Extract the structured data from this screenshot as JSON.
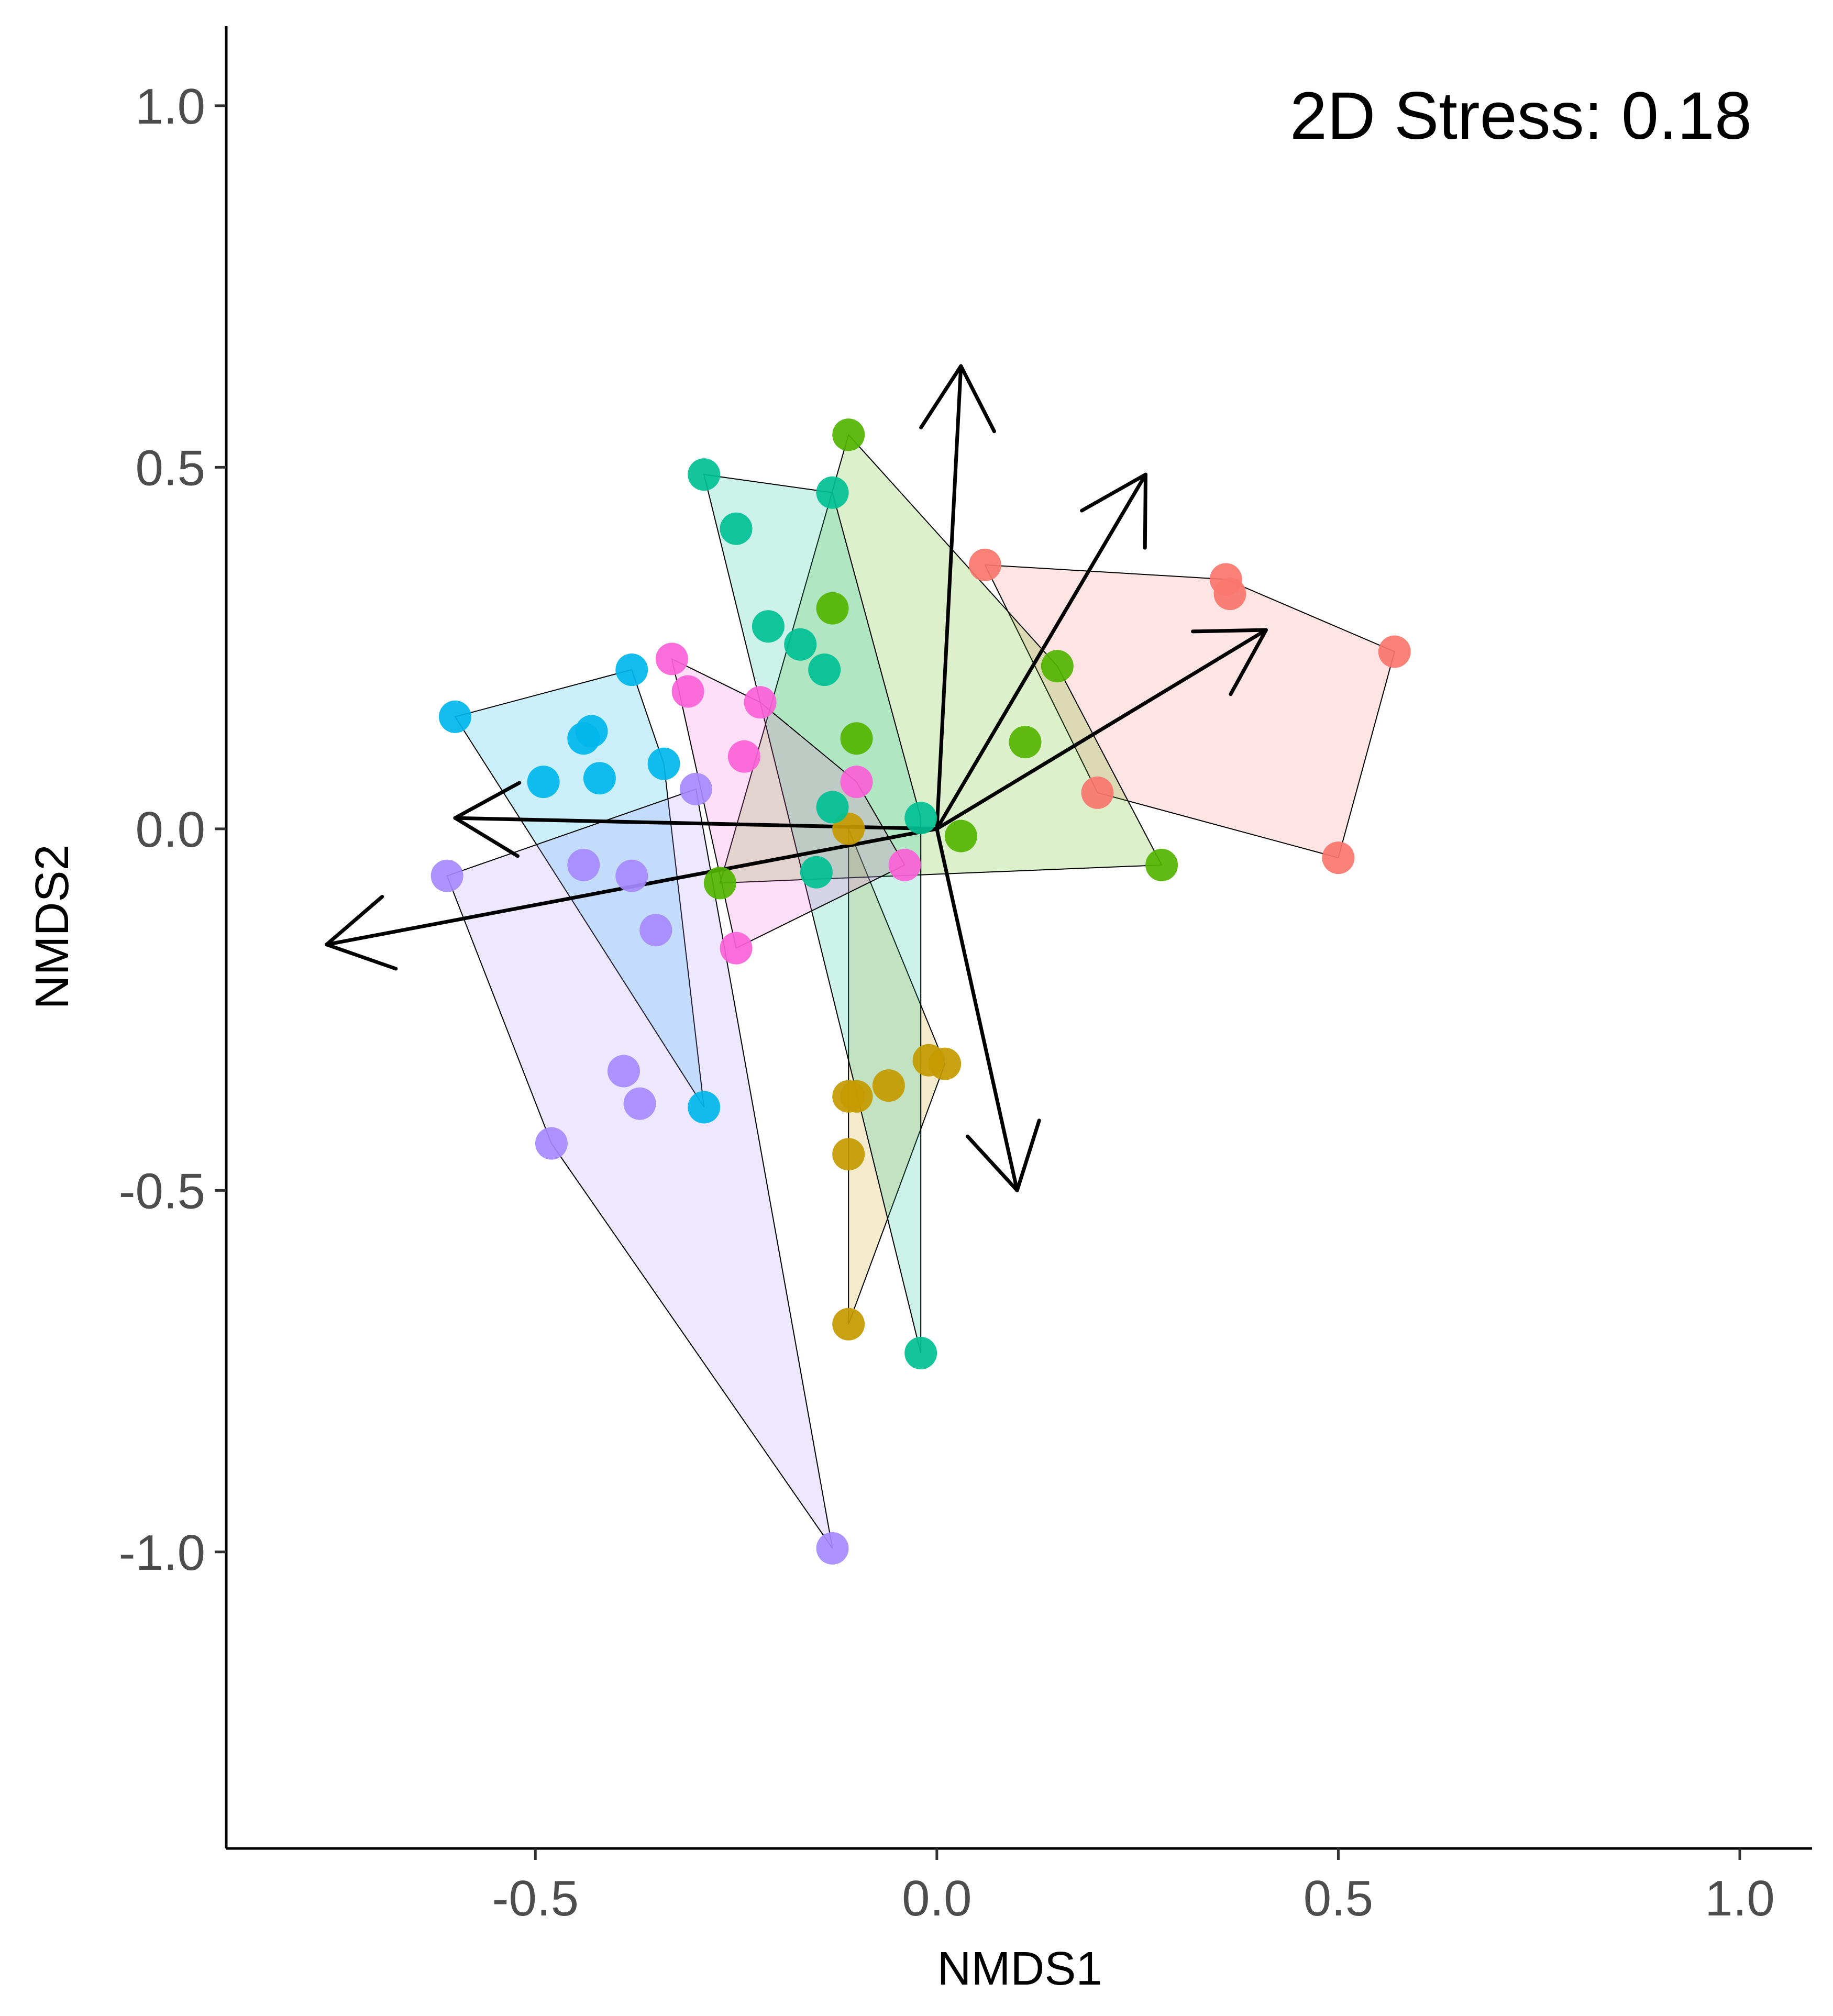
{
  "chart_data": {
    "type": "scatter",
    "xlabel": "NMDS1",
    "ylabel": "NMDS2",
    "xlim": [
      -0.885,
      1.09
    ],
    "ylim": [
      -1.41,
      1.11
    ],
    "xticks": [
      -0.5,
      0.0,
      0.5,
      1.0
    ],
    "yticks": [
      1.0,
      0.5,
      0.0,
      -0.5,
      -1.0
    ],
    "annotation": "2D Stress: 0.18",
    "grid": false,
    "hulls": true,
    "series": [
      {
        "color": "#F8766D",
        "points": [
          [
            0.06,
            0.365
          ],
          [
            0.36,
            0.345
          ],
          [
            0.365,
            0.325
          ],
          [
            0.57,
            0.245
          ],
          [
            0.5,
            -0.04
          ],
          [
            0.2,
            0.05
          ]
        ]
      },
      {
        "color": "#C49A00",
        "points": [
          [
            -0.11,
            -0.37
          ],
          [
            -0.1,
            -0.37
          ],
          [
            -0.06,
            -0.355
          ],
          [
            -0.01,
            -0.32
          ],
          [
            0.01,
            -0.325
          ],
          [
            -0.11,
            -0.45
          ],
          [
            -0.11,
            -0.685
          ],
          [
            -0.11,
            0.0
          ]
        ]
      },
      {
        "color": "#53B400",
        "points": [
          [
            -0.11,
            0.545
          ],
          [
            -0.13,
            0.305
          ],
          [
            -0.1,
            0.125
          ],
          [
            0.15,
            0.225
          ],
          [
            0.11,
            0.12
          ],
          [
            0.28,
            -0.05
          ],
          [
            0.03,
            -0.01
          ],
          [
            -0.27,
            -0.075
          ]
        ]
      },
      {
        "color": "#00C094",
        "points": [
          [
            -0.29,
            0.49
          ],
          [
            -0.25,
            0.415
          ],
          [
            -0.21,
            0.28
          ],
          [
            -0.17,
            0.255
          ],
          [
            -0.13,
            0.465
          ],
          [
            -0.14,
            0.22
          ],
          [
            -0.13,
            0.03
          ],
          [
            -0.15,
            -0.06
          ],
          [
            -0.02,
            0.015
          ],
          [
            -0.02,
            -0.725
          ]
        ]
      },
      {
        "color": "#00B6EB",
        "points": [
          [
            -0.6,
            0.155
          ],
          [
            -0.38,
            0.22
          ],
          [
            -0.49,
            0.065
          ],
          [
            -0.44,
            0.125
          ],
          [
            -0.43,
            0.135
          ],
          [
            -0.42,
            0.07
          ],
          [
            -0.34,
            0.09
          ],
          [
            -0.29,
            -0.385
          ]
        ]
      },
      {
        "color": "#A58AFF",
        "points": [
          [
            -0.61,
            -0.065
          ],
          [
            -0.44,
            -0.05
          ],
          [
            -0.38,
            -0.065
          ],
          [
            -0.35,
            -0.14
          ],
          [
            -0.3,
            0.055
          ],
          [
            -0.39,
            -0.335
          ],
          [
            -0.37,
            -0.38
          ],
          [
            -0.48,
            -0.435
          ],
          [
            -0.13,
            -0.995
          ]
        ]
      },
      {
        "color": "#FB61D7",
        "points": [
          [
            -0.33,
            0.235
          ],
          [
            -0.31,
            0.19
          ],
          [
            -0.22,
            0.175
          ],
          [
            -0.24,
            0.1
          ],
          [
            -0.1,
            0.065
          ],
          [
            -0.04,
            -0.05
          ],
          [
            -0.25,
            -0.165
          ]
        ]
      }
    ],
    "arrows": [
      [
        0.03,
        0.64
      ],
      [
        0.26,
        0.49
      ],
      [
        0.41,
        0.275
      ],
      [
        -0.6,
        0.015
      ],
      [
        -0.76,
        -0.16
      ],
      [
        0.1,
        -0.5
      ]
    ]
  }
}
